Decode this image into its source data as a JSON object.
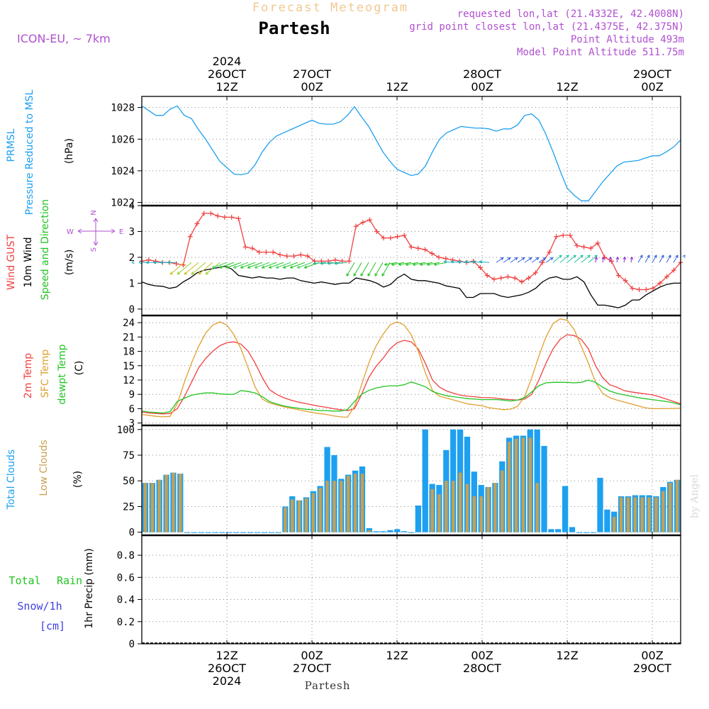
{
  "header": {
    "app_title": "Forecast Meteogram",
    "location": "Partesh",
    "model": "ICON-EU, ~ 7km",
    "requested": "requested lon,lat (21.4332E, 42.4008N)",
    "closest": "grid point closest lon,lat (21.4375E, 42.375N)",
    "altitude": "Point Altitude 493m",
    "model_altitude": "Model Point Altitude 511.75m",
    "footer_location": "Partesh",
    "credit": "by Angel"
  },
  "colors": {
    "pressure": "#1ea0f0",
    "gust": "#f04040",
    "wind10": "#000000",
    "wind_dir": "#22c422",
    "temp2m": "#f04040",
    "sfc": "#e0a030",
    "dewpt": "#22c422",
    "total_cloud": "#1ea0f0",
    "low_cloud": "#c8a050",
    "title_purple": "#b050d0",
    "rain_green": "#22c422",
    "snow_blue": "#4040e0"
  },
  "time_axis": {
    "top_labels": [
      {
        "t": 12,
        "lines": [
          "2024",
          "26OCT",
          "12Z"
        ]
      },
      {
        "t": 24,
        "lines": [
          "27OCT",
          "00Z"
        ]
      },
      {
        "t": 36,
        "lines": [
          "12Z"
        ]
      },
      {
        "t": 48,
        "lines": [
          "28OCT",
          "00Z"
        ]
      },
      {
        "t": 60,
        "lines": [
          "12Z"
        ]
      },
      {
        "t": 72,
        "lines": [
          "29OCT",
          "00Z"
        ]
      }
    ],
    "bottom_labels": [
      {
        "t": 12,
        "lines": [
          "12Z",
          "26OCT",
          "2024"
        ]
      },
      {
        "t": 24,
        "lines": [
          "00Z",
          "27OCT"
        ]
      },
      {
        "t": 36,
        "lines": [
          "12Z"
        ]
      },
      {
        "t": 48,
        "lines": [
          "00Z",
          "28OCT"
        ]
      },
      {
        "t": 60,
        "lines": [
          "12Z"
        ]
      },
      {
        "t": 72,
        "lines": [
          "00Z",
          "29OCT"
        ]
      }
    ],
    "range_hours": [
      0,
      76
    ]
  },
  "chart_data": [
    {
      "type": "line",
      "title": "PRMSL Pressure Reduced to MSL",
      "ylabel": "(hPa)",
      "label_lines": [
        "PRMSL",
        "Pressure Reduced to MSL"
      ],
      "ylim": [
        1021.8,
        1028.7
      ],
      "yticks": [
        1022,
        1024,
        1026,
        1028
      ],
      "series": [
        {
          "name": "PRMSL",
          "color": "#1ea0f0",
          "x": [
            0,
            1,
            2,
            3,
            4,
            5,
            6,
            7,
            8,
            9,
            10,
            11,
            12,
            13,
            14,
            15,
            16,
            17,
            18,
            19,
            20,
            21,
            22,
            23,
            24,
            25,
            26,
            27,
            28,
            29,
            30,
            31,
            32,
            33,
            34,
            35,
            36,
            37,
            38,
            39,
            40,
            41,
            42,
            43,
            44,
            45,
            46,
            47,
            48,
            49,
            50,
            51,
            52,
            53,
            54,
            55,
            56,
            57,
            58,
            59,
            60,
            61,
            62,
            63,
            64,
            65,
            66,
            67,
            68,
            69,
            70,
            71,
            72,
            73,
            74,
            75,
            76
          ],
          "values": [
            1028.1,
            1027.8,
            1027.5,
            1027.5,
            1027.9,
            1028.1,
            1027.5,
            1027.3,
            1026.6,
            1026.0,
            1025.3,
            1024.6,
            1024.2,
            1023.8,
            1023.75,
            1023.85,
            1024.4,
            1025.2,
            1025.8,
            1026.2,
            1026.4,
            1026.6,
            1026.8,
            1027.0,
            1027.2,
            1027.0,
            1026.95,
            1026.95,
            1027.1,
            1027.5,
            1028.05,
            1027.4,
            1026.8,
            1026.0,
            1025.2,
            1024.6,
            1024.1,
            1023.9,
            1023.7,
            1023.8,
            1024.3,
            1025.2,
            1026.0,
            1026.4,
            1026.6,
            1026.8,
            1026.75,
            1026.7,
            1026.7,
            1026.65,
            1026.5,
            1026.65,
            1026.65,
            1026.9,
            1027.5,
            1027.6,
            1027.2,
            1026.3,
            1025.2,
            1024.0,
            1022.9,
            1022.45,
            1022.1,
            1022.1,
            1022.7,
            1023.3,
            1023.8,
            1024.3,
            1024.55,
            1024.6,
            1024.65,
            1024.8,
            1024.95,
            1024.95,
            1025.2,
            1025.5,
            1025.95
          ]
        }
      ]
    },
    {
      "type": "line",
      "title": "Wind GUST / 10m Wind / Speed and Direction",
      "ylabel": "(m/s)",
      "label_lines": [
        "Wind GUST",
        "10m Wind",
        "Speed and Direction"
      ],
      "compass": {
        "n": "N",
        "s": "S",
        "w": "W",
        "e": "E"
      },
      "ylim": [
        -0.25,
        4.0
      ],
      "yticks": [
        0,
        1,
        2,
        3,
        4
      ],
      "series": [
        {
          "name": "Wind GUST",
          "color": "#f04040",
          "values": [
            1.85,
            1.9,
            1.85,
            1.8,
            1.8,
            1.75,
            1.7,
            2.8,
            3.3,
            3.7,
            3.7,
            3.6,
            3.55,
            3.55,
            3.5,
            2.4,
            2.35,
            2.2,
            2.2,
            2.2,
            2.1,
            2.05,
            2.05,
            2.1,
            2.05,
            1.85,
            1.85,
            1.85,
            1.9,
            1.85,
            1.85,
            3.2,
            3.35,
            3.45,
            3.0,
            2.75,
            2.75,
            2.8,
            2.85,
            2.4,
            2.35,
            2.3,
            2.15,
            2.0,
            1.95,
            1.9,
            1.85,
            1.8,
            1.85,
            1.6,
            1.3,
            1.15,
            1.2,
            1.25,
            1.2,
            1.05,
            1.2,
            1.4,
            1.8,
            2.2,
            2.8,
            2.85,
            2.85,
            2.45,
            2.4,
            2.35,
            2.55,
            2.0,
            1.85,
            1.3,
            1.1,
            0.8,
            0.75,
            0.75,
            0.8,
            1.0,
            1.25,
            1.5,
            1.8
          ]
        },
        {
          "name": "10m Wind",
          "color": "#000000",
          "values": [
            1.05,
            0.95,
            0.9,
            0.88,
            0.8,
            0.85,
            1.05,
            1.2,
            1.4,
            1.5,
            1.55,
            1.6,
            1.65,
            1.55,
            1.3,
            1.25,
            1.2,
            1.25,
            1.2,
            1.2,
            1.15,
            1.2,
            1.2,
            1.1,
            1.05,
            1.0,
            1.05,
            1.0,
            0.95,
            1.0,
            1.0,
            1.2,
            1.15,
            1.1,
            1.0,
            0.85,
            0.95,
            1.2,
            1.35,
            1.15,
            1.1,
            1.1,
            1.05,
            1.0,
            0.9,
            0.85,
            0.8,
            0.45,
            0.45,
            0.6,
            0.6,
            0.6,
            0.5,
            0.45,
            0.5,
            0.55,
            0.65,
            0.8,
            1.05,
            1.2,
            1.25,
            1.15,
            1.15,
            1.25,
            1.05,
            0.55,
            0.15,
            0.15,
            0.1,
            0.05,
            0.15,
            0.35,
            0.35,
            0.55,
            0.7,
            0.85,
            0.95,
            1.0,
            1.0
          ]
        },
        {
          "name": "Speed and Direction",
          "color": "#22c422",
          "arrows": true
        }
      ]
    },
    {
      "type": "line",
      "title": "2m Temp / SFC Temp / dewpt Temp",
      "ylabel": "(C)",
      "label_lines": [
        "2m Temp",
        "SFC Temp",
        "dewpt Temp"
      ],
      "ylim": [
        2.5,
        25.5
      ],
      "yticks": [
        3,
        6,
        9,
        12,
        15,
        18,
        21,
        24
      ],
      "series": [
        {
          "name": "2m Temp",
          "color": "#f04040",
          "values": [
            5.3,
            5.1,
            5.0,
            4.9,
            5.0,
            6.0,
            8.5,
            11.5,
            14.5,
            16.5,
            18.0,
            19.2,
            19.8,
            20.0,
            19.5,
            18.0,
            15.5,
            12.5,
            10.0,
            9.0,
            8.3,
            7.8,
            7.4,
            7.1,
            6.8,
            6.5,
            6.3,
            6.0,
            5.8,
            5.6,
            6.0,
            9.0,
            12.5,
            14.8,
            16.5,
            18.5,
            19.8,
            20.3,
            20.0,
            18.5,
            15.5,
            12.0,
            10.5,
            9.7,
            9.2,
            8.8,
            8.6,
            8.5,
            8.3,
            8.3,
            8.2,
            8.0,
            7.9,
            7.8,
            8.0,
            9.0,
            12.0,
            15.5,
            18.5,
            20.5,
            21.5,
            21.3,
            20.5,
            18.5,
            15.0,
            12.5,
            11.0,
            10.5,
            9.8,
            9.5,
            9.3,
            9.1,
            8.9,
            8.5,
            8.0,
            7.5,
            7.0
          ]
        },
        {
          "name": "SFC Temp",
          "color": "#e0a030",
          "values": [
            4.8,
            4.6,
            4.4,
            4.3,
            4.4,
            7.0,
            11.5,
            15.5,
            19.0,
            21.8,
            23.5,
            24.2,
            23.5,
            21.5,
            18.5,
            14.5,
            10.5,
            8.0,
            7.2,
            6.8,
            6.4,
            6.1,
            5.8,
            5.5,
            5.2,
            5.0,
            4.8,
            4.5,
            4.3,
            4.2,
            6.5,
            11.0,
            15.5,
            19.0,
            21.5,
            23.5,
            24.2,
            23.5,
            21.5,
            18.0,
            13.5,
            9.8,
            8.6,
            8.2,
            7.8,
            7.4,
            7.0,
            6.8,
            6.6,
            6.2,
            6.0,
            5.8,
            5.9,
            6.5,
            8.5,
            12.5,
            17.0,
            21.0,
            23.8,
            24.8,
            24.5,
            22.5,
            19.0,
            15.5,
            11.5,
            9.2,
            8.3,
            7.8,
            7.4,
            7.0,
            6.6,
            6.2,
            6.0,
            6.0,
            6.0,
            6.05,
            6.1
          ]
        },
        {
          "name": "dewpt Temp",
          "color": "#22c422",
          "values": [
            5.5,
            5.3,
            5.2,
            5.1,
            5.4,
            7.5,
            8.2,
            8.8,
            9.1,
            9.3,
            9.3,
            9.1,
            9.0,
            9.0,
            9.8,
            9.6,
            9.3,
            8.5,
            7.5,
            7.0,
            6.6,
            6.3,
            6.1,
            5.9,
            5.8,
            5.6,
            5.6,
            5.5,
            5.5,
            5.8,
            7.5,
            9.0,
            9.8,
            10.3,
            10.6,
            10.8,
            10.8,
            11.0,
            11.6,
            11.1,
            10.6,
            9.6,
            9.1,
            8.7,
            8.5,
            8.3,
            8.1,
            8.0,
            7.9,
            7.9,
            7.9,
            7.8,
            7.6,
            7.8,
            8.3,
            9.5,
            10.8,
            11.4,
            11.5,
            11.5,
            11.5,
            11.4,
            11.5,
            12.0,
            11.5,
            10.5,
            9.7,
            9.2,
            8.9,
            8.6,
            8.3,
            8.1,
            7.9,
            7.7,
            7.5,
            7.2,
            6.8
          ]
        }
      ]
    },
    {
      "type": "bar",
      "title": "Total Clouds / Low Clouds",
      "ylabel": "(%)",
      "label_lines": [
        "Total Clouds",
        "Low Clouds"
      ],
      "ylim": [
        -3,
        104
      ],
      "yticks": [
        0,
        25,
        50,
        75,
        100
      ],
      "series": [
        {
          "name": "Total Clouds",
          "color": "#1ea0f0",
          "values": [
            48,
            48,
            51,
            56,
            58,
            57,
            0,
            0,
            0,
            0,
            0,
            0,
            0,
            0,
            0,
            0,
            0,
            0,
            0,
            0,
            25,
            35,
            31,
            34,
            40,
            45,
            83,
            75,
            52,
            56,
            60,
            64,
            4,
            1,
            1,
            2,
            3,
            1,
            0,
            26,
            100,
            47,
            46,
            80,
            100,
            100,
            93,
            59,
            46,
            44,
            48,
            69,
            92,
            94,
            94,
            100,
            100,
            84,
            3,
            3,
            45,
            5,
            0,
            0,
            0,
            53,
            22,
            20,
            35,
            35,
            36,
            36,
            36,
            35,
            44,
            49,
            51
          ]
        },
        {
          "name": "Low Clouds",
          "color": "#c8a050",
          "values": [
            48,
            48,
            51,
            56,
            58,
            57,
            0,
            0,
            0,
            0,
            0,
            0,
            0,
            0,
            0,
            0,
            0,
            0,
            0,
            0,
            24,
            32,
            31,
            33,
            38,
            43,
            50,
            50,
            50,
            55,
            57,
            57,
            2,
            0,
            0,
            0,
            0,
            0,
            0,
            0,
            0,
            42,
            37,
            50,
            50,
            58,
            47,
            35,
            35,
            44,
            48,
            60,
            88,
            91,
            92,
            92,
            48,
            0,
            0,
            0,
            0,
            0,
            0,
            0,
            0,
            0,
            0,
            15,
            34,
            34,
            34,
            34,
            34,
            34,
            40,
            48,
            51
          ]
        }
      ]
    },
    {
      "type": "line",
      "title": "1hr Precip (mm)",
      "ylabel": "1hr Precip (mm)",
      "label_lines": [
        "Total",
        "Rain",
        "Snow/1h",
        "[cm]"
      ],
      "ylim": [
        0,
        0.98
      ],
      "yticks": [
        0,
        0.2,
        0.4,
        0.6,
        0.8
      ],
      "yticklabels": [
        "0",
        "0.2",
        "0.4",
        "0.6",
        "0.8"
      ],
      "series": [
        {
          "name": "Total",
          "color": "#22c422",
          "values": []
        },
        {
          "name": "Snow/1h",
          "color": "#4040e0",
          "values": []
        }
      ]
    }
  ]
}
